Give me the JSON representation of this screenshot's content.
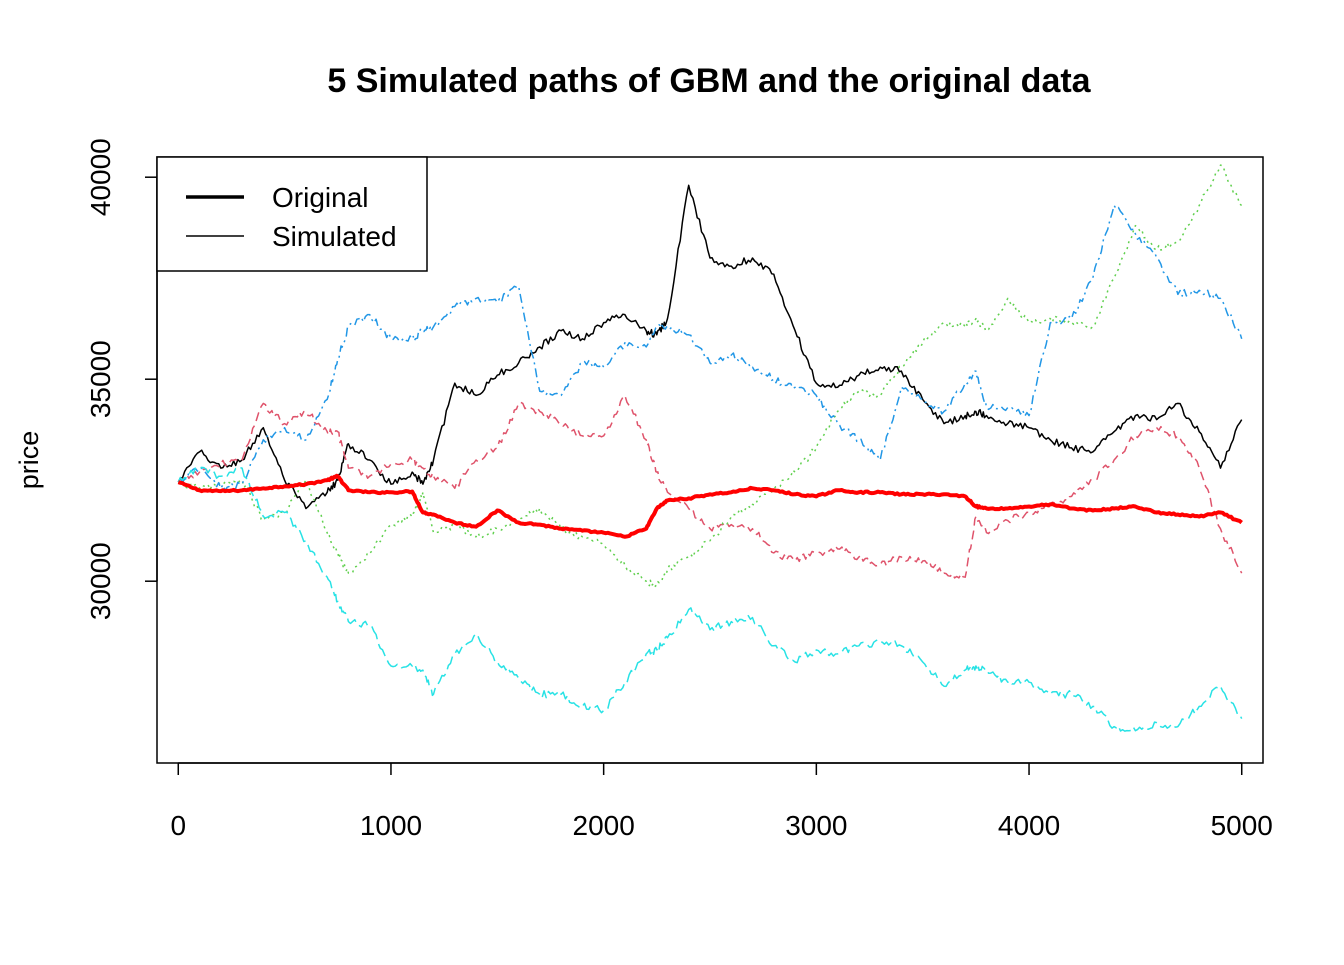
{
  "chart_data": {
    "type": "line",
    "title": "5 Simulated paths of GBM and the original data",
    "xlabel": "",
    "ylabel": "price",
    "xlim": [
      -100,
      5100
    ],
    "ylim": [
      25500,
      40500
    ],
    "x_ticks": [
      0,
      1000,
      2000,
      3000,
      4000,
      5000
    ],
    "x_tick_labels": [
      "0",
      "1000",
      "2000",
      "3000",
      "4000",
      "5000"
    ],
    "y_ticks": [
      30000,
      35000,
      40000
    ],
    "y_tick_labels": [
      "30000",
      "35000",
      "40000"
    ],
    "grid": false,
    "legend": {
      "position": "top-left",
      "entries": [
        {
          "label": "Original",
          "style": "thick"
        },
        {
          "label": "Simulated",
          "style": "thin"
        }
      ]
    },
    "x": [
      0,
      100,
      200,
      300,
      400,
      500,
      600,
      700,
      750,
      800,
      900,
      1000,
      1100,
      1150,
      1200,
      1300,
      1400,
      1500,
      1600,
      1700,
      1800,
      1900,
      2000,
      2100,
      2200,
      2250,
      2300,
      2400,
      2500,
      2600,
      2700,
      2800,
      2900,
      3000,
      3100,
      3200,
      3300,
      3400,
      3500,
      3600,
      3700,
      3750,
      3800,
      3900,
      4000,
      4100,
      4200,
      4300,
      4400,
      4500,
      4600,
      4700,
      4800,
      4900,
      5000
    ],
    "series": [
      {
        "label": "Original",
        "color": "#FF0000",
        "dash": "solid",
        "width": 4,
        "values": [
          32450,
          32250,
          32230,
          32250,
          32300,
          32350,
          32400,
          32500,
          32600,
          32250,
          32200,
          32200,
          32220,
          31700,
          31650,
          31450,
          31350,
          31750,
          31450,
          31400,
          31300,
          31250,
          31200,
          31100,
          31300,
          31800,
          32000,
          32050,
          32150,
          32200,
          32300,
          32250,
          32150,
          32100,
          32250,
          32200,
          32200,
          32150,
          32150,
          32150,
          32100,
          31850,
          31800,
          31800,
          31850,
          31900,
          31800,
          31750,
          31800,
          31850,
          31700,
          31650,
          31600,
          31700,
          31450
        ]
      },
      {
        "label": "Simulated",
        "color": "#000000",
        "dash": "solid",
        "width": 1.5,
        "values": [
          32450,
          33200,
          32800,
          33000,
          33800,
          32500,
          31800,
          32200,
          32500,
          33400,
          33000,
          32400,
          32700,
          32400,
          33000,
          34900,
          34600,
          35100,
          35400,
          35800,
          36200,
          36000,
          36400,
          36600,
          36200,
          36100,
          36500,
          39800,
          38000,
          37800,
          38000,
          37600,
          36200,
          34900,
          34800,
          35100,
          35300,
          35200,
          34500,
          33900,
          34100,
          34200,
          34100,
          33900,
          33800,
          33500,
          33300,
          33200,
          33700,
          34100,
          34000,
          34400,
          33700,
          32800,
          34000
        ]
      },
      {
        "label": "Simulated",
        "color": "#DF536B",
        "dash": "dashed",
        "width": 1.5,
        "values": [
          32450,
          32700,
          32900,
          33000,
          34400,
          33900,
          34200,
          33700,
          33700,
          32800,
          32600,
          32900,
          33000,
          32800,
          32600,
          32300,
          33000,
          33300,
          34400,
          34200,
          33900,
          33600,
          33600,
          34600,
          33500,
          32700,
          32200,
          31800,
          31300,
          31400,
          31300,
          30700,
          30500,
          30700,
          30800,
          30600,
          30400,
          30600,
          30500,
          30200,
          30100,
          31600,
          31200,
          31500,
          31700,
          31900,
          32100,
          32500,
          33000,
          33600,
          33800,
          33600,
          32800,
          31300,
          30200
        ]
      },
      {
        "label": "Simulated",
        "color": "#61D04F",
        "dash": "dotted",
        "width": 1.5,
        "values": [
          32450,
          32300,
          32400,
          32500,
          31500,
          31700,
          32500,
          31200,
          30700,
          30200,
          30700,
          31400,
          31600,
          32200,
          31200,
          31400,
          31100,
          31300,
          31500,
          31800,
          31300,
          31100,
          30900,
          30400,
          30000,
          29900,
          30300,
          30600,
          31000,
          31600,
          31900,
          32300,
          32700,
          33300,
          34200,
          34700,
          34600,
          35300,
          35900,
          36400,
          36300,
          36500,
          36200,
          37000,
          36400,
          36500,
          36400,
          36300,
          37500,
          38800,
          38200,
          38400,
          39300,
          40300,
          39300
        ]
      },
      {
        "label": "Simulated",
        "color": "#2297E6",
        "dash": "dotdash",
        "width": 1.5,
        "values": [
          32450,
          32800,
          32300,
          32400,
          33500,
          33800,
          33500,
          34500,
          35500,
          36300,
          36600,
          36000,
          36000,
          36200,
          36300,
          36800,
          37000,
          36900,
          37300,
          34700,
          34600,
          35400,
          35300,
          35900,
          35800,
          36300,
          36300,
          36100,
          35400,
          35600,
          35300,
          35000,
          34800,
          34600,
          33900,
          33500,
          33000,
          34800,
          34500,
          34200,
          34900,
          35200,
          34300,
          34300,
          34100,
          36400,
          36500,
          37500,
          39300,
          38600,
          38000,
          37100,
          37200,
          37000,
          36000
        ]
      },
      {
        "label": "Simulated",
        "color": "#28E2E5",
        "dash": "longdash",
        "width": 1.5,
        "values": [
          32450,
          32800,
          32600,
          32800,
          31600,
          31700,
          31000,
          30100,
          29500,
          29000,
          28900,
          27900,
          27900,
          27800,
          27200,
          28200,
          28700,
          28000,
          27600,
          27200,
          27200,
          26900,
          26800,
          27500,
          28200,
          28300,
          28600,
          29300,
          28800,
          29000,
          29100,
          28400,
          28000,
          28300,
          28200,
          28400,
          28500,
          28400,
          28000,
          27400,
          27800,
          27900,
          27800,
          27500,
          27500,
          27200,
          27200,
          26900,
          26400,
          26300,
          26500,
          26400,
          26900,
          27400,
          26600
        ]
      }
    ]
  }
}
